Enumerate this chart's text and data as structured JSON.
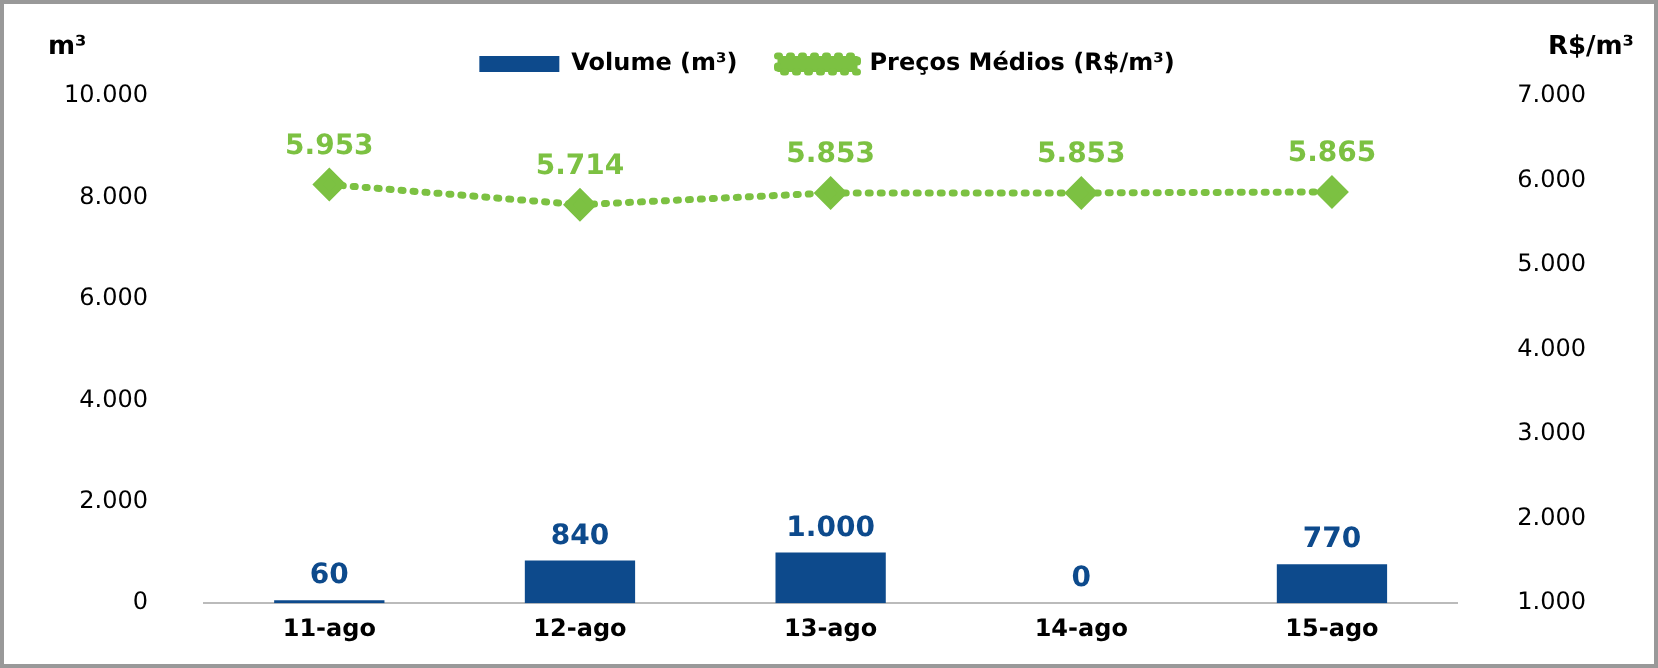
{
  "chart_data": {
    "type": "bar",
    "categories": [
      "11-ago",
      "12-ago",
      "13-ago",
      "14-ago",
      "15-ago"
    ],
    "series": [
      {
        "name": "Volume (m³)",
        "color": "#0d4a8c",
        "values": [
          60,
          840,
          1000,
          0,
          770
        ],
        "value_labels": [
          "60",
          "840",
          "1.000",
          "0",
          "770"
        ]
      },
      {
        "name": "Preços Médios (R$/m³)",
        "type": "line",
        "axis": "y2",
        "color": "#7cc142",
        "marker": "diamond",
        "line_style": "dotted",
        "values": [
          5953,
          5714,
          5853,
          5853,
          5865
        ],
        "value_labels": [
          "5.953",
          "5.714",
          "5.853",
          "5.853",
          "5.865"
        ]
      }
    ],
    "ylabel": "m³",
    "y2label": "R$/m³",
    "ylim": [
      0,
      10000
    ],
    "yticks": [
      {
        "value": 0,
        "label": "0"
      },
      {
        "value": 2000,
        "label": "2.000"
      },
      {
        "value": 4000,
        "label": "4.000"
      },
      {
        "value": 6000,
        "label": "6.000"
      },
      {
        "value": 8000,
        "label": "8.000"
      },
      {
        "value": 10000,
        "label": "10.000"
      }
    ],
    "y2lim": [
      1000,
      7000
    ],
    "y2ticks": [
      {
        "value": 1000,
        "label": "1.000"
      },
      {
        "value": 2000,
        "label": "2.000"
      },
      {
        "value": 3000,
        "label": "3.000"
      },
      {
        "value": 4000,
        "label": "4.000"
      },
      {
        "value": 5000,
        "label": "5.000"
      },
      {
        "value": 6000,
        "label": "6.000"
      },
      {
        "value": 7000,
        "label": "7.000"
      }
    ],
    "grid": false,
    "legend": "top"
  }
}
